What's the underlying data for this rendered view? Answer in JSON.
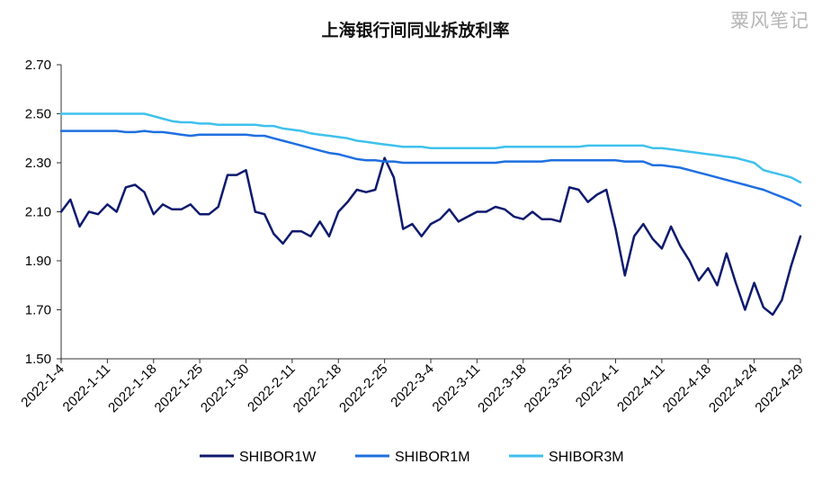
{
  "title": "上海银行间同业拆放利率",
  "watermark": "粟风笔记",
  "chart_data": {
    "type": "line",
    "title": "上海银行间同业拆放利率",
    "xlabel": "",
    "ylabel": "",
    "ylim": [
      1.5,
      2.7
    ],
    "yticks": [
      "2.70",
      "2.50",
      "2.30",
      "2.10",
      "1.90",
      "1.70",
      "1.50"
    ],
    "xticks": [
      "2022-1-4",
      "2022-1-11",
      "2022-1-18",
      "2022-1-25",
      "2022-1-30",
      "2022-2-11",
      "2022-2-18",
      "2022-2-25",
      "2022-3-4",
      "2022-3-11",
      "2022-3-18",
      "2022-3-25",
      "2022-4-1",
      "2022-4-11",
      "2022-4-18",
      "2022-4-24",
      "2022-4-29"
    ],
    "grid": false,
    "legend": "bottom",
    "series": [
      {
        "name": "SHIBOR1W",
        "color": "#0d1a6e",
        "values": [
          2.1,
          2.15,
          2.04,
          2.1,
          2.09,
          2.13,
          2.1,
          2.2,
          2.21,
          2.18,
          2.09,
          2.13,
          2.11,
          2.11,
          2.13,
          2.09,
          2.09,
          2.12,
          2.25,
          2.25,
          2.27,
          2.1,
          2.09,
          2.01,
          1.97,
          2.02,
          2.02,
          2.0,
          2.06,
          2.0,
          2.1,
          2.14,
          2.19,
          2.18,
          2.19,
          2.32,
          2.24,
          2.03,
          2.05,
          2.0,
          2.05,
          2.07,
          2.11,
          2.06,
          2.08,
          2.1,
          2.1,
          2.12,
          2.11,
          2.08,
          2.07,
          2.1,
          2.07,
          2.07,
          2.06,
          2.2,
          2.19,
          2.14,
          2.17,
          2.19,
          2.03,
          1.84,
          2.0,
          2.05,
          1.99,
          1.95,
          2.04,
          1.96,
          1.9,
          1.82,
          1.87,
          1.8,
          1.93,
          1.81,
          1.7,
          1.81,
          1.71,
          1.68,
          1.74,
          1.88,
          2.0
        ]
      },
      {
        "name": "SHIBOR1M",
        "color": "#1f6fe0",
        "values": [
          2.43,
          2.43,
          2.43,
          2.43,
          2.43,
          2.43,
          2.43,
          2.425,
          2.425,
          2.43,
          2.425,
          2.425,
          2.42,
          2.415,
          2.41,
          2.415,
          2.415,
          2.415,
          2.415,
          2.415,
          2.415,
          2.41,
          2.41,
          2.4,
          2.39,
          2.38,
          2.37,
          2.36,
          2.35,
          2.34,
          2.335,
          2.325,
          2.315,
          2.31,
          2.31,
          2.305,
          2.305,
          2.3,
          2.3,
          2.3,
          2.3,
          2.3,
          2.3,
          2.3,
          2.3,
          2.3,
          2.3,
          2.3,
          2.305,
          2.305,
          2.305,
          2.305,
          2.305,
          2.31,
          2.31,
          2.31,
          2.31,
          2.31,
          2.31,
          2.31,
          2.31,
          2.305,
          2.305,
          2.305,
          2.29,
          2.29,
          2.285,
          2.28,
          2.27,
          2.26,
          2.25,
          2.24,
          2.23,
          2.22,
          2.21,
          2.2,
          2.19,
          2.175,
          2.16,
          2.145,
          2.125
        ]
      },
      {
        "name": "SHIBOR3M",
        "color": "#3ec1ec",
        "values": [
          2.5,
          2.5,
          2.5,
          2.5,
          2.5,
          2.5,
          2.5,
          2.5,
          2.5,
          2.5,
          2.49,
          2.48,
          2.47,
          2.465,
          2.465,
          2.46,
          2.46,
          2.455,
          2.455,
          2.455,
          2.455,
          2.455,
          2.45,
          2.45,
          2.44,
          2.435,
          2.43,
          2.42,
          2.415,
          2.41,
          2.405,
          2.4,
          2.39,
          2.385,
          2.38,
          2.375,
          2.37,
          2.365,
          2.365,
          2.365,
          2.36,
          2.36,
          2.36,
          2.36,
          2.36,
          2.36,
          2.36,
          2.36,
          2.365,
          2.365,
          2.365,
          2.365,
          2.365,
          2.365,
          2.365,
          2.365,
          2.365,
          2.37,
          2.37,
          2.37,
          2.37,
          2.37,
          2.37,
          2.37,
          2.36,
          2.36,
          2.355,
          2.35,
          2.345,
          2.34,
          2.335,
          2.33,
          2.325,
          2.32,
          2.31,
          2.3,
          2.27,
          2.26,
          2.25,
          2.24,
          2.22
        ]
      }
    ]
  }
}
